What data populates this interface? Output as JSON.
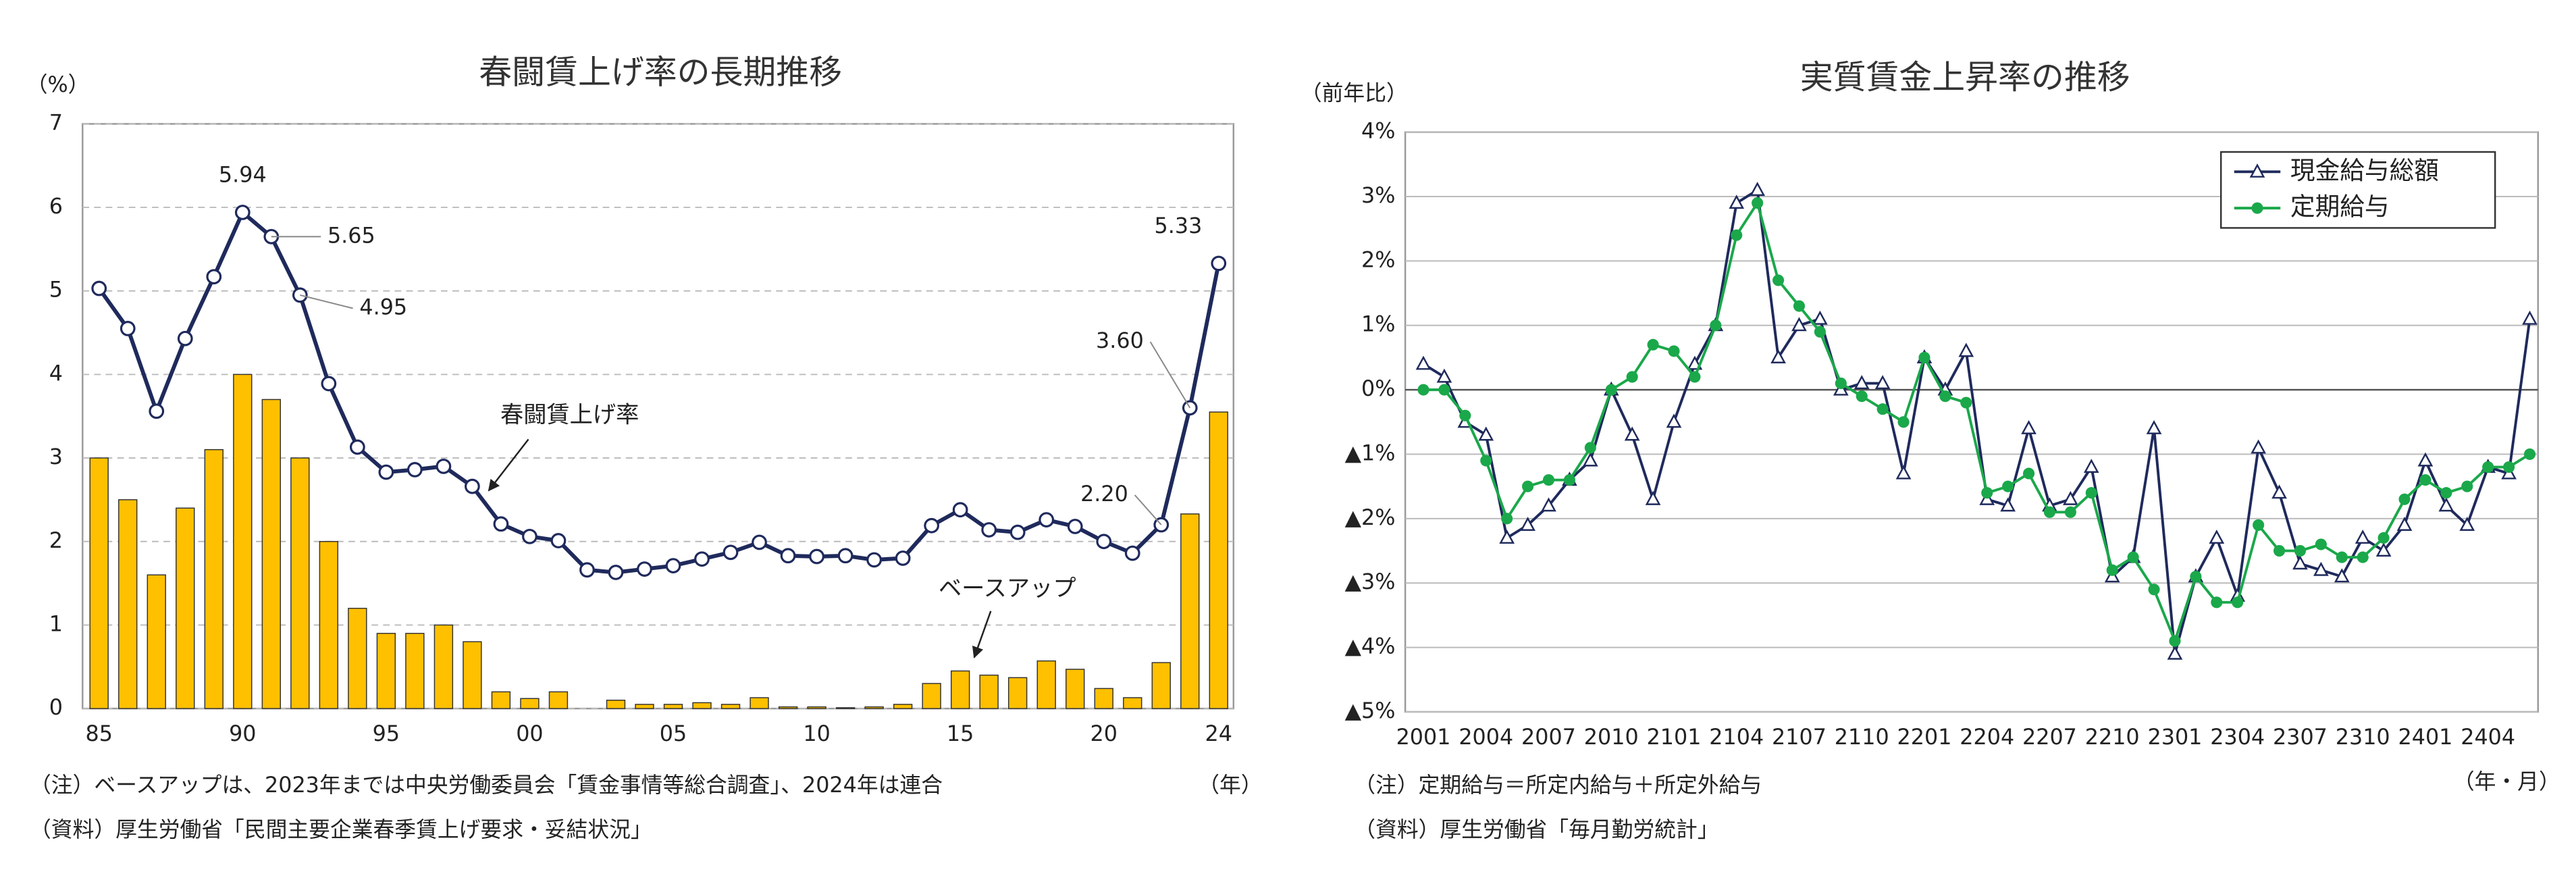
{
  "chart_data": [
    {
      "type": "combo",
      "title": "春闘賃上げ率の長期推移",
      "y_label": "（%）",
      "x_label": "（年）",
      "notes": [
        "（注）ベースアップは、2023年までは中央労働委員会「賃金事情等総合調査」、2024年は連合",
        "（資料）厚生労働省「民間主要企業春季賃上げ要求・妥結状況」"
      ],
      "categories": [
        "85",
        null,
        null,
        null,
        null,
        "90",
        null,
        null,
        null,
        null,
        "95",
        null,
        null,
        null,
        null,
        "00",
        null,
        null,
        null,
        null,
        "05",
        null,
        null,
        null,
        null,
        "10",
        null,
        null,
        null,
        null,
        "15",
        null,
        null,
        null,
        null,
        "20",
        null,
        null,
        null,
        "24"
      ],
      "ylim": [
        0,
        7
      ],
      "yticks": [
        0,
        1,
        2,
        3,
        4,
        5,
        6,
        7
      ],
      "grid": true,
      "grid_style": "dashed",
      "series": [
        {
          "name": "ベースアップ",
          "type": "bar",
          "color": "#ffc000",
          "values": [
            3.0,
            2.5,
            1.6,
            2.4,
            3.1,
            4.0,
            3.7,
            3.0,
            2.0,
            1.2,
            0.9,
            0.9,
            1.0,
            0.8,
            0.2,
            0.12,
            0.2,
            0.0,
            0.1,
            0.05,
            0.05,
            0.07,
            0.05,
            0.13,
            0.02,
            0.02,
            0.01,
            0.02,
            0.05,
            0.3,
            0.45,
            0.4,
            0.37,
            0.57,
            0.47,
            0.24,
            0.13,
            0.55,
            2.33,
            3.55
          ]
        },
        {
          "name": "春闘賃上げ率",
          "type": "line",
          "color": "#1f2a5c",
          "values": [
            5.03,
            4.55,
            3.56,
            4.43,
            5.17,
            5.94,
            5.65,
            4.95,
            3.89,
            3.13,
            2.83,
            2.86,
            2.9,
            2.66,
            2.21,
            2.06,
            2.01,
            1.66,
            1.63,
            1.67,
            1.71,
            1.79,
            1.87,
            1.99,
            1.83,
            1.82,
            1.83,
            1.78,
            1.8,
            2.19,
            2.38,
            2.14,
            2.11,
            2.26,
            2.18,
            2.0,
            1.86,
            2.2,
            3.6,
            5.33
          ],
          "value_labels": [
            null,
            null,
            null,
            null,
            null,
            "5.94",
            "5.65",
            "4.95",
            null,
            null,
            null,
            null,
            null,
            null,
            null,
            null,
            null,
            null,
            null,
            null,
            null,
            null,
            null,
            null,
            null,
            null,
            null,
            null,
            null,
            null,
            null,
            null,
            null,
            null,
            null,
            null,
            null,
            "2.20",
            "3.60",
            "5.33"
          ]
        }
      ]
    },
    {
      "type": "line",
      "title": "実質賃金上昇率の推移",
      "y_label": "（前年比）",
      "x_label": "（年・月）",
      "notes": [
        "（注）定期給与＝所定内給与＋所定外給与",
        "（資料）厚生労働省「毎月勤労統計」"
      ],
      "categories": [
        "2001",
        null,
        null,
        "2004",
        null,
        null,
        "2007",
        null,
        null,
        "2010",
        null,
        null,
        "2101",
        null,
        null,
        "2104",
        null,
        null,
        "2107",
        null,
        null,
        "2110",
        null,
        null,
        "2201",
        null,
        null,
        "2204",
        null,
        null,
        "2207",
        null,
        null,
        "2210",
        null,
        null,
        "2301",
        null,
        null,
        "2304",
        null,
        null,
        "2307",
        null,
        null,
        "2310",
        null,
        null,
        "2401",
        null,
        null,
        "2404",
        null,
        null
      ],
      "ylim": [
        -5,
        4
      ],
      "yticks": [
        {
          "value": 4,
          "label": "4%"
        },
        {
          "value": 3,
          "label": "3%"
        },
        {
          "value": 2,
          "label": "2%"
        },
        {
          "value": 1,
          "label": "1%"
        },
        {
          "value": 0,
          "label": "0%"
        },
        {
          "value": -1,
          "label": "▲1%"
        },
        {
          "value": -2,
          "label": "▲2%"
        },
        {
          "value": -3,
          "label": "▲3%"
        },
        {
          "value": -4,
          "label": "▲4%"
        },
        {
          "value": -5,
          "label": "▲5%"
        }
      ],
      "grid": true,
      "grid_style": "solid",
      "legend": "upper right",
      "series": [
        {
          "name": "現金給与総額",
          "type": "line",
          "marker": "triangle",
          "color": "#1f2a5c",
          "values": [
            0.4,
            0.2,
            -0.5,
            -0.7,
            -2.3,
            -2.1,
            -1.8,
            -1.4,
            -1.1,
            0.0,
            -0.7,
            -1.7,
            -0.5,
            0.4,
            1.0,
            2.9,
            3.1,
            0.5,
            1.0,
            1.1,
            0.0,
            0.1,
            0.1,
            -1.3,
            0.5,
            0.0,
            0.6,
            -1.7,
            -1.8,
            -0.6,
            -1.8,
            -1.7,
            -1.2,
            -2.9,
            -2.6,
            -0.6,
            -4.1,
            -2.9,
            -2.3,
            -3.2,
            -0.9,
            -1.6,
            -2.7,
            -2.8,
            -2.9,
            -2.3,
            -2.5,
            -2.1,
            -1.1,
            -1.8,
            -2.1,
            -1.2,
            -1.3,
            1.1
          ]
        },
        {
          "name": "定期給与",
          "type": "line",
          "marker": "circle",
          "color": "#1aa84a",
          "values": [
            0.0,
            0.0,
            -0.4,
            -1.1,
            -2.0,
            -1.5,
            -1.4,
            -1.4,
            -0.9,
            0.0,
            0.2,
            0.7,
            0.6,
            0.2,
            1.0,
            2.4,
            2.9,
            1.7,
            1.3,
            0.9,
            0.1,
            -0.1,
            -0.3,
            -0.5,
            0.5,
            -0.1,
            -0.2,
            -1.6,
            -1.5,
            -1.3,
            -1.9,
            -1.9,
            -1.6,
            -2.8,
            -2.6,
            -3.1,
            -3.9,
            -2.9,
            -3.3,
            -3.3,
            -2.1,
            -2.5,
            -2.5,
            -2.4,
            -2.6,
            -2.6,
            -2.3,
            -1.7,
            -1.4,
            -1.6,
            -1.5,
            -1.2,
            -1.2,
            -1.0
          ]
        }
      ]
    }
  ]
}
